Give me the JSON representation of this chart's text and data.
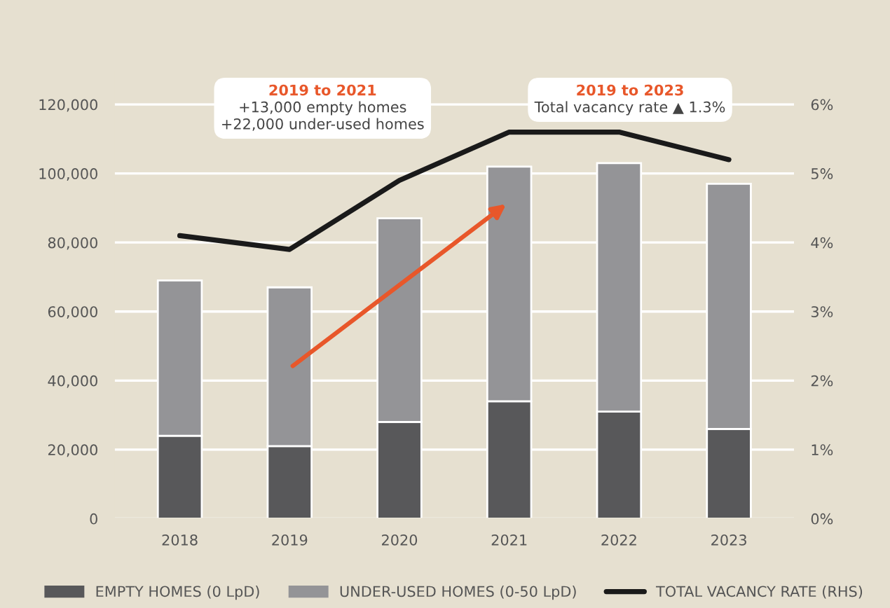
{
  "chart_data": {
    "type": "bar",
    "stacked": true,
    "categories": [
      "2018",
      "2019",
      "2020",
      "2021",
      "2022",
      "2023"
    ],
    "series": [
      {
        "name": "EMPTY HOMES (0 LpD)",
        "color": "#58585a",
        "values": [
          24000,
          21000,
          28000,
          34000,
          31000,
          26000
        ]
      },
      {
        "name": "UNDER-USED HOMES (0-50 LpD)",
        "color": "#949497",
        "values": [
          45000,
          46000,
          59000,
          68000,
          72000,
          71000
        ]
      },
      {
        "name": "TOTAL VACANCY RATE (RHS)",
        "type": "line",
        "axis": "y2",
        "color": "#1a1a1a",
        "values": [
          4.1,
          3.9,
          4.9,
          5.6,
          5.6,
          5.2
        ]
      }
    ],
    "ylim": [
      0,
      130000
    ],
    "yticks": [
      {
        "value": 0,
        "label": "0"
      },
      {
        "value": 20000,
        "label": "20,000"
      },
      {
        "value": 40000,
        "label": "40,000"
      },
      {
        "value": 60000,
        "label": "60,000"
      },
      {
        "value": 80000,
        "label": "80,000"
      },
      {
        "value": 100000,
        "label": "100,000"
      },
      {
        "value": 120000,
        "label": "120,000"
      }
    ],
    "y2lim": [
      0,
      6.5
    ],
    "y2ticks": [
      {
        "value": 0,
        "label": "0%"
      },
      {
        "value": 1,
        "label": "1%"
      },
      {
        "value": 2,
        "label": "2%"
      },
      {
        "value": 3,
        "label": "3%"
      },
      {
        "value": 4,
        "label": "4%"
      },
      {
        "value": 5,
        "label": "5%"
      },
      {
        "value": 6,
        "label": "6%"
      }
    ],
    "grid": "y",
    "legend": "bottom",
    "marker": "none",
    "line_style": "solid",
    "annotations": [
      "2019 to 2021",
      "+13,000 empty homes\n+22,000 under-used homes",
      "2019 to 2023",
      "Total vacancy rate ▲ 1.3%"
    ]
  }
}
